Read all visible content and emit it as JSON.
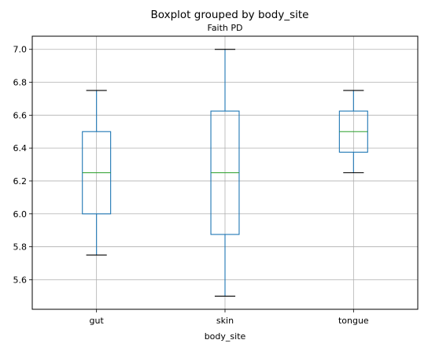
{
  "chart_data": {
    "type": "boxplot",
    "title": "Boxplot grouped by body_site",
    "subtitle": "Faith PD",
    "xlabel": "body_site",
    "ylabel": "",
    "categories": [
      "gut",
      "skin",
      "tongue"
    ],
    "boxes": [
      {
        "category": "gut",
        "whisker_low": 5.75,
        "q1": 6.0,
        "median": 6.25,
        "q3": 6.5,
        "whisker_high": 6.75
      },
      {
        "category": "skin",
        "whisker_low": 5.5,
        "q1": 5.875,
        "median": 6.25,
        "q3": 6.625,
        "whisker_high": 7.0
      },
      {
        "category": "tongue",
        "whisker_low": 6.25,
        "q1": 6.375,
        "median": 6.5,
        "q3": 6.625,
        "whisker_high": 6.75
      }
    ],
    "ylim": [
      5.42,
      7.08
    ],
    "yticks": [
      5.6,
      5.8,
      6.0,
      6.2,
      6.4,
      6.6,
      6.8,
      7.0
    ],
    "ytick_labels": [
      "5.6",
      "5.8",
      "6.0",
      "6.2",
      "6.4",
      "6.6",
      "6.8",
      "7.0"
    ],
    "grid": true,
    "colors": {
      "box": "#1f77b4",
      "median": "#2ca02c",
      "cap": "#000000",
      "grid": "#b0b0b0",
      "axes": "#000000"
    }
  }
}
